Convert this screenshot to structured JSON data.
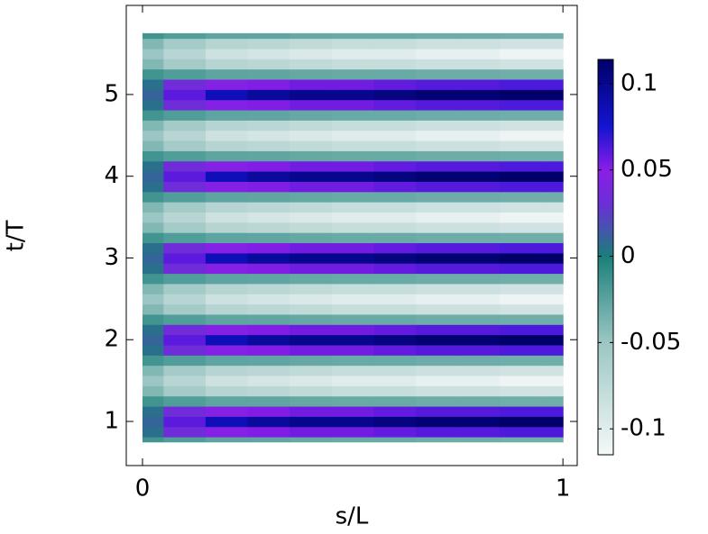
{
  "chart_data": {
    "type": "heatmap",
    "xlabel": "s/L",
    "ylabel": "t/T",
    "x": [
      0,
      0.1,
      0.2,
      0.3,
      0.4,
      0.5,
      0.6,
      0.7,
      0.8,
      0.9,
      1
    ],
    "y": [
      0.75,
      0.875,
      1,
      1.125,
      1.25,
      1.375,
      1.5,
      1.625,
      1.75,
      1.875,
      2,
      2.125,
      2.25,
      2.375,
      2.5,
      2.625,
      2.75,
      2.875,
      3,
      3.125,
      3.25,
      3.375,
      3.5,
      3.625,
      3.75,
      3.875,
      4,
      4.125,
      4.25,
      4.375,
      4.5,
      4.625,
      4.75,
      4.875,
      5,
      5.125,
      5.25,
      5.375,
      5.5,
      5.625,
      5.75
    ],
    "z": [
      [
        -0.015,
        -0.021,
        -0.026,
        -0.027,
        -0.029,
        -0.03,
        -0.03,
        -0.032,
        -0.032,
        -0.033,
        -0.033
      ],
      [
        0.006,
        0.033,
        0.047,
        0.052,
        0.055,
        0.055,
        0.058,
        0.061,
        0.061,
        0.063,
        0.063
      ],
      [
        0.01,
        0.06,
        0.085,
        0.095,
        0.1,
        0.1,
        0.105,
        0.11,
        0.11,
        0.115,
        0.115
      ],
      [
        0.006,
        0.033,
        0.047,
        0.052,
        0.055,
        0.055,
        0.058,
        0.061,
        0.061,
        0.063,
        0.063
      ],
      [
        -0.015,
        -0.021,
        -0.026,
        -0.027,
        -0.029,
        -0.03,
        -0.03,
        -0.032,
        -0.032,
        -0.033,
        -0.033
      ],
      [
        -0.04,
        -0.056,
        -0.068,
        -0.072,
        -0.076,
        -0.08,
        -0.08,
        -0.084,
        -0.084,
        -0.088,
        -0.088
      ],
      [
        -0.05,
        -0.07,
        -0.085,
        -0.09,
        -0.095,
        -0.1,
        -0.1,
        -0.105,
        -0.105,
        -0.11,
        -0.11
      ],
      [
        -0.04,
        -0.056,
        -0.068,
        -0.072,
        -0.076,
        -0.08,
        -0.08,
        -0.084,
        -0.084,
        -0.088,
        -0.088
      ],
      [
        -0.015,
        -0.021,
        -0.026,
        -0.027,
        -0.029,
        -0.03,
        -0.03,
        -0.032,
        -0.032,
        -0.033,
        -0.033
      ],
      [
        0.006,
        0.033,
        0.047,
        0.052,
        0.055,
        0.055,
        0.058,
        0.061,
        0.061,
        0.063,
        0.063
      ],
      [
        0.01,
        0.06,
        0.085,
        0.095,
        0.1,
        0.1,
        0.105,
        0.11,
        0.11,
        0.115,
        0.115
      ],
      [
        0.006,
        0.033,
        0.047,
        0.052,
        0.055,
        0.055,
        0.058,
        0.061,
        0.061,
        0.063,
        0.063
      ],
      [
        -0.015,
        -0.021,
        -0.026,
        -0.027,
        -0.029,
        -0.03,
        -0.03,
        -0.032,
        -0.032,
        -0.033,
        -0.033
      ],
      [
        -0.04,
        -0.056,
        -0.068,
        -0.072,
        -0.076,
        -0.08,
        -0.08,
        -0.084,
        -0.084,
        -0.088,
        -0.088
      ],
      [
        -0.05,
        -0.07,
        -0.085,
        -0.09,
        -0.095,
        -0.1,
        -0.1,
        -0.105,
        -0.105,
        -0.11,
        -0.11
      ],
      [
        -0.04,
        -0.056,
        -0.068,
        -0.072,
        -0.076,
        -0.08,
        -0.08,
        -0.084,
        -0.084,
        -0.088,
        -0.088
      ],
      [
        -0.015,
        -0.021,
        -0.026,
        -0.027,
        -0.029,
        -0.03,
        -0.03,
        -0.032,
        -0.032,
        -0.033,
        -0.033
      ],
      [
        0.006,
        0.033,
        0.047,
        0.052,
        0.055,
        0.055,
        0.058,
        0.061,
        0.061,
        0.063,
        0.063
      ],
      [
        0.01,
        0.06,
        0.085,
        0.095,
        0.1,
        0.1,
        0.105,
        0.11,
        0.11,
        0.115,
        0.115
      ],
      [
        0.006,
        0.033,
        0.047,
        0.052,
        0.055,
        0.055,
        0.058,
        0.061,
        0.061,
        0.063,
        0.063
      ],
      [
        -0.015,
        -0.021,
        -0.026,
        -0.027,
        -0.029,
        -0.03,
        -0.03,
        -0.032,
        -0.032,
        -0.033,
        -0.033
      ],
      [
        -0.04,
        -0.056,
        -0.068,
        -0.072,
        -0.076,
        -0.08,
        -0.08,
        -0.084,
        -0.084,
        -0.088,
        -0.088
      ],
      [
        -0.05,
        -0.07,
        -0.085,
        -0.09,
        -0.095,
        -0.1,
        -0.1,
        -0.105,
        -0.105,
        -0.11,
        -0.11
      ],
      [
        -0.04,
        -0.056,
        -0.068,
        -0.072,
        -0.076,
        -0.08,
        -0.08,
        -0.084,
        -0.084,
        -0.088,
        -0.088
      ],
      [
        -0.015,
        -0.021,
        -0.026,
        -0.027,
        -0.029,
        -0.03,
        -0.03,
        -0.032,
        -0.032,
        -0.033,
        -0.033
      ],
      [
        0.006,
        0.033,
        0.047,
        0.052,
        0.055,
        0.055,
        0.058,
        0.061,
        0.061,
        0.063,
        0.063
      ],
      [
        0.01,
        0.06,
        0.085,
        0.095,
        0.1,
        0.1,
        0.105,
        0.11,
        0.11,
        0.115,
        0.115
      ],
      [
        0.006,
        0.033,
        0.047,
        0.052,
        0.055,
        0.055,
        0.058,
        0.061,
        0.061,
        0.063,
        0.063
      ],
      [
        -0.015,
        -0.021,
        -0.026,
        -0.027,
        -0.029,
        -0.03,
        -0.03,
        -0.032,
        -0.032,
        -0.033,
        -0.033
      ],
      [
        -0.04,
        -0.056,
        -0.068,
        -0.072,
        -0.076,
        -0.08,
        -0.08,
        -0.084,
        -0.084,
        -0.088,
        -0.088
      ],
      [
        -0.05,
        -0.07,
        -0.085,
        -0.09,
        -0.095,
        -0.1,
        -0.1,
        -0.105,
        -0.105,
        -0.11,
        -0.11
      ],
      [
        -0.04,
        -0.056,
        -0.068,
        -0.072,
        -0.076,
        -0.08,
        -0.08,
        -0.084,
        -0.084,
        -0.088,
        -0.088
      ],
      [
        -0.015,
        -0.021,
        -0.026,
        -0.027,
        -0.029,
        -0.03,
        -0.03,
        -0.032,
        -0.032,
        -0.033,
        -0.033
      ],
      [
        0.006,
        0.033,
        0.047,
        0.052,
        0.055,
        0.055,
        0.058,
        0.061,
        0.061,
        0.063,
        0.063
      ],
      [
        0.01,
        0.06,
        0.085,
        0.095,
        0.1,
        0.1,
        0.105,
        0.11,
        0.11,
        0.115,
        0.115
      ],
      [
        0.006,
        0.033,
        0.047,
        0.052,
        0.055,
        0.055,
        0.058,
        0.061,
        0.061,
        0.063,
        0.063
      ],
      [
        -0.015,
        -0.021,
        -0.026,
        -0.027,
        -0.029,
        -0.03,
        -0.03,
        -0.032,
        -0.032,
        -0.033,
        -0.033
      ],
      [
        -0.04,
        -0.056,
        -0.068,
        -0.072,
        -0.076,
        -0.08,
        -0.08,
        -0.084,
        -0.084,
        -0.088,
        -0.088
      ],
      [
        -0.05,
        -0.07,
        -0.085,
        -0.09,
        -0.095,
        -0.1,
        -0.1,
        -0.105,
        -0.105,
        -0.11,
        -0.11
      ],
      [
        -0.04,
        -0.056,
        -0.068,
        -0.072,
        -0.076,
        -0.08,
        -0.08,
        -0.084,
        -0.084,
        -0.088,
        -0.088
      ],
      [
        -0.015,
        -0.021,
        -0.026,
        -0.027,
        -0.029,
        -0.03,
        -0.03,
        -0.032,
        -0.032,
        -0.033,
        -0.033
      ]
    ],
    "xlim": [
      -0.0386,
      1.034
    ],
    "ylim": [
      0.46,
      6.09
    ],
    "xticks": [
      0,
      1
    ],
    "yticks": [
      1,
      2,
      3,
      4,
      5
    ],
    "zlim": [
      -0.115,
      0.114
    ],
    "zticks": [
      -0.1,
      -0.05,
      0,
      0.05,
      0.1
    ],
    "colorscale": [
      [
        -0.115,
        "#f5f8f8"
      ],
      [
        -0.05,
        "#9cc6c3"
      ],
      [
        0,
        "#1a7f7a"
      ],
      [
        0.03,
        "#6a2fd6"
      ],
      [
        0.05,
        "#8a1ee6"
      ],
      [
        0.075,
        "#1414d2"
      ],
      [
        0.114,
        "#000068"
      ]
    ]
  }
}
